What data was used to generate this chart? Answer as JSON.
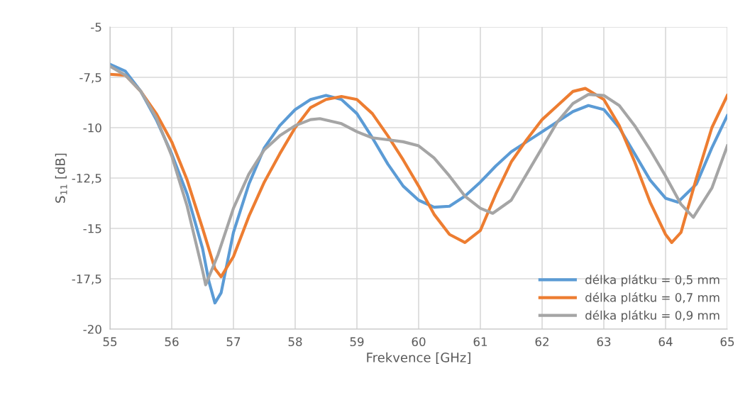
{
  "chart_data": {
    "type": "line",
    "xlabel": "Frekvence [GHz]",
    "ylabel": "S$_{11}$ [dB]",
    "xlim": [
      55,
      65
    ],
    "xticks": [
      55,
      56,
      57,
      58,
      59,
      60,
      61,
      62,
      63,
      64,
      65
    ],
    "ylim": [
      -20,
      -5
    ],
    "yticks": [
      -20,
      {
        "value": -17.5,
        "label": "-17,5"
      },
      {
        "value": -15,
        "label": "-15"
      },
      {
        "value": -12.5,
        "label": "-12,5"
      },
      {
        "value": -10,
        "label": "-10"
      },
      {
        "value": -7.5,
        "label": "-7,5"
      },
      {
        "value": -5,
        "label": "-5"
      }
    ],
    "grid": true,
    "legend": "bottom right",
    "marker": "none",
    "line_style": "solid",
    "series": [
      {
        "name": "délka plátku = 0,5 mm",
        "color": "#5b9bd5",
        "x": [
          55,
          55.25,
          55.5,
          55.75,
          56,
          56.25,
          56.5,
          56.6,
          56.7,
          56.8,
          57,
          57.25,
          57.5,
          57.75,
          58,
          58.25,
          58.5,
          58.75,
          59,
          59.25,
          59.5,
          59.75,
          60,
          60.25,
          60.5,
          60.75,
          61,
          61.25,
          61.5,
          61.75,
          62,
          62.25,
          62.5,
          62.75,
          63,
          63.25,
          63.5,
          63.75,
          64,
          64.2,
          64.5,
          64.75,
          65
        ],
        "values": [
          -6.85,
          -7.2,
          -8.2,
          -9.6,
          -11.3,
          -13.3,
          -16.0,
          -17.6,
          -18.7,
          -18.2,
          -15.2,
          -12.8,
          -11.0,
          -9.9,
          -9.1,
          -8.6,
          -8.4,
          -8.6,
          -9.3,
          -10.5,
          -11.8,
          -12.9,
          -13.6,
          -13.95,
          -13.9,
          -13.4,
          -12.7,
          -11.9,
          -11.2,
          -10.7,
          -10.2,
          -9.7,
          -9.2,
          -8.9,
          -9.1,
          -10.0,
          -11.3,
          -12.6,
          -13.5,
          -13.7,
          -12.8,
          -11.0,
          -9.4
        ]
      },
      {
        "name": "délka plátku = 0,7 mm",
        "color": "#ed7d31",
        "x": [
          55,
          55.25,
          55.5,
          55.75,
          56,
          56.25,
          56.5,
          56.7,
          56.8,
          57,
          57.25,
          57.5,
          57.75,
          58,
          58.25,
          58.5,
          58.75,
          59,
          59.25,
          59.5,
          59.75,
          60,
          60.25,
          60.5,
          60.75,
          61,
          61.25,
          61.5,
          61.75,
          62,
          62.25,
          62.5,
          62.7,
          63,
          63.25,
          63.5,
          63.75,
          64,
          64.1,
          64.25,
          64.5,
          64.75,
          65
        ],
        "values": [
          -7.35,
          -7.4,
          -8.2,
          -9.3,
          -10.7,
          -12.6,
          -15.0,
          -17.0,
          -17.4,
          -16.4,
          -14.4,
          -12.7,
          -11.3,
          -10.0,
          -9.0,
          -8.6,
          -8.45,
          -8.6,
          -9.3,
          -10.4,
          -11.6,
          -12.9,
          -14.3,
          -15.3,
          -15.7,
          -15.1,
          -13.3,
          -11.7,
          -10.6,
          -9.6,
          -8.9,
          -8.2,
          -8.05,
          -8.6,
          -9.9,
          -11.7,
          -13.7,
          -15.3,
          -15.7,
          -15.2,
          -12.5,
          -10.0,
          -8.4
        ]
      },
      {
        "name": "délka plátku = 0,9 mm",
        "color": "#a5a5a5",
        "x": [
          55,
          55.25,
          55.5,
          55.75,
          56,
          56.25,
          56.5,
          56.55,
          56.75,
          57,
          57.25,
          57.5,
          57.75,
          58,
          58.25,
          58.4,
          58.75,
          59,
          59.25,
          59.5,
          59.75,
          60,
          60.25,
          60.5,
          60.75,
          61,
          61.2,
          61.5,
          61.75,
          62,
          62.25,
          62.5,
          62.75,
          63,
          63.25,
          63.5,
          63.75,
          64,
          64.25,
          64.45,
          64.75,
          65
        ],
        "values": [
          -6.95,
          -7.4,
          -8.2,
          -9.5,
          -11.4,
          -13.9,
          -17.1,
          -17.8,
          -16.3,
          -14.0,
          -12.3,
          -11.1,
          -10.4,
          -9.9,
          -9.6,
          -9.55,
          -9.8,
          -10.2,
          -10.5,
          -10.6,
          -10.7,
          -10.9,
          -11.5,
          -12.4,
          -13.4,
          -14.0,
          -14.25,
          -13.6,
          -12.3,
          -11.0,
          -9.7,
          -8.8,
          -8.35,
          -8.4,
          -8.9,
          -9.9,
          -11.1,
          -12.4,
          -13.8,
          -14.45,
          -13.0,
          -10.9
        ]
      }
    ]
  }
}
